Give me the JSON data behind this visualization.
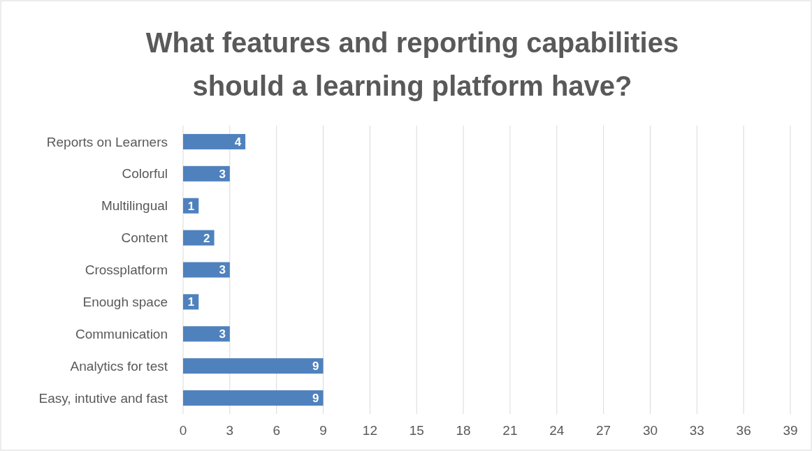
{
  "chart_data": {
    "type": "bar",
    "orientation": "horizontal",
    "title": "What features and reporting capabilities should a learning platform have?",
    "categories": [
      "Reports on Learners",
      "Colorful",
      "Multilingual",
      "Content",
      "Crossplatform",
      "Enough space",
      "Communication",
      "Analytics for test",
      "Easy, intutive and fast"
    ],
    "values": [
      4,
      3,
      1,
      2,
      3,
      1,
      3,
      9,
      9
    ],
    "color": "#4f81bd",
    "xlim": [
      0,
      39
    ],
    "xticks": [
      0,
      3,
      6,
      9,
      12,
      15,
      18,
      21,
      24,
      27,
      30,
      33,
      36,
      39
    ],
    "grid": "x",
    "data_labels": true
  }
}
